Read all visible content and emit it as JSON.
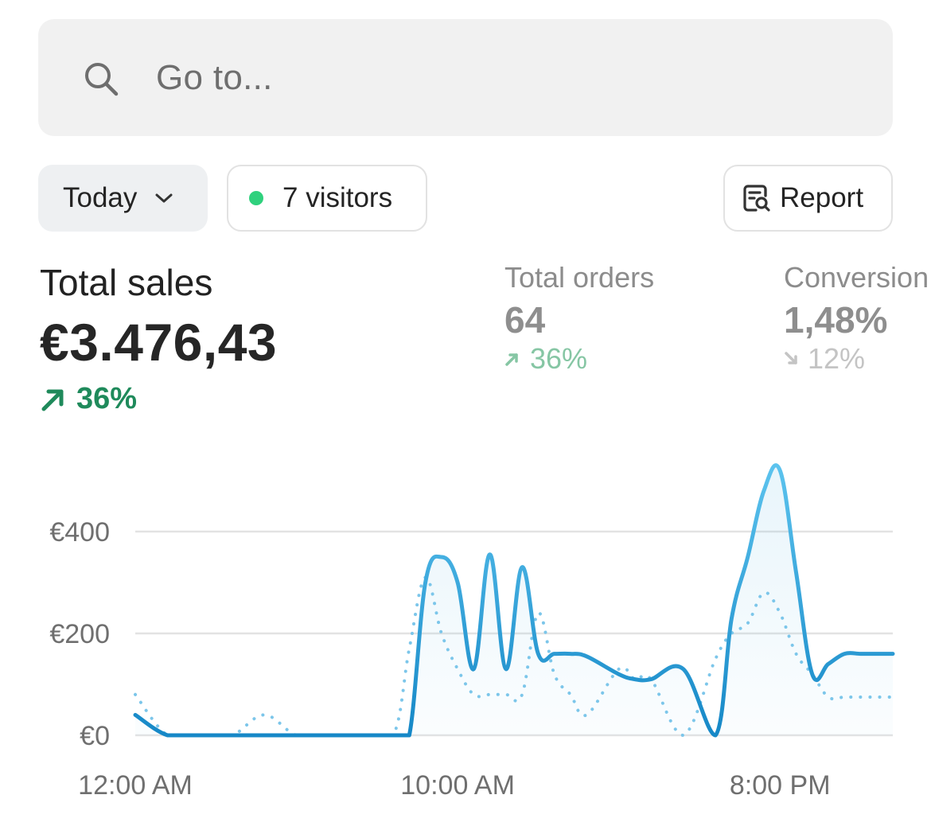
{
  "search": {
    "placeholder": "Go to..."
  },
  "filters": {
    "period_label": "Today",
    "visitors_label": "7 visitors",
    "report_label": "Report"
  },
  "metrics": {
    "total_sales": {
      "label": "Total sales",
      "value": "€3.476,43",
      "change": "36%",
      "direction": "up"
    },
    "total_orders": {
      "label": "Total orders",
      "value": "64",
      "change": "36%",
      "direction": "up"
    },
    "conversion": {
      "label": "Conversion",
      "value": "1,48%",
      "change": "12%",
      "direction": "down"
    }
  },
  "colors": {
    "accent": "#1e9bd7",
    "positive": "#1f8a5b",
    "online_dot": "#2fd17d"
  },
  "chart_data": {
    "type": "line",
    "ylim": [
      0,
      400
    ],
    "y_ticks": [
      "€0",
      "€200",
      "€400"
    ],
    "x_ticks": [
      "12:00 AM",
      "10:00 AM",
      "8:00 PM"
    ],
    "x_hours": [
      0,
      1,
      2,
      3,
      4,
      5,
      6,
      7,
      8,
      8.5,
      9,
      9.5,
      10,
      10.5,
      11,
      11.5,
      12,
      12.5,
      13,
      13.5,
      14,
      15,
      15.5,
      16,
      17,
      18,
      18.5,
      19,
      19.5,
      20,
      20.5,
      21,
      21.5,
      22,
      22.5,
      23,
      23.5
    ],
    "series": [
      {
        "style": "solid",
        "values": [
          40,
          0,
          0,
          0,
          0,
          0,
          0,
          0,
          0,
          0,
          300,
          350,
          300,
          130,
          355,
          130,
          330,
          160,
          160,
          160,
          155,
          120,
          110,
          110,
          130,
          0,
          230,
          350,
          480,
          520,
          320,
          120,
          140,
          160,
          160,
          160,
          160
        ]
      },
      {
        "style": "dotted",
        "values": [
          80,
          0,
          0,
          0,
          40,
          0,
          0,
          0,
          0,
          170,
          310,
          200,
          130,
          80,
          80,
          80,
          80,
          240,
          120,
          80,
          40,
          130,
          110,
          110,
          0,
          150,
          200,
          220,
          280,
          240,
          160,
          120,
          75,
          75,
          75,
          75,
          75
        ]
      }
    ]
  }
}
